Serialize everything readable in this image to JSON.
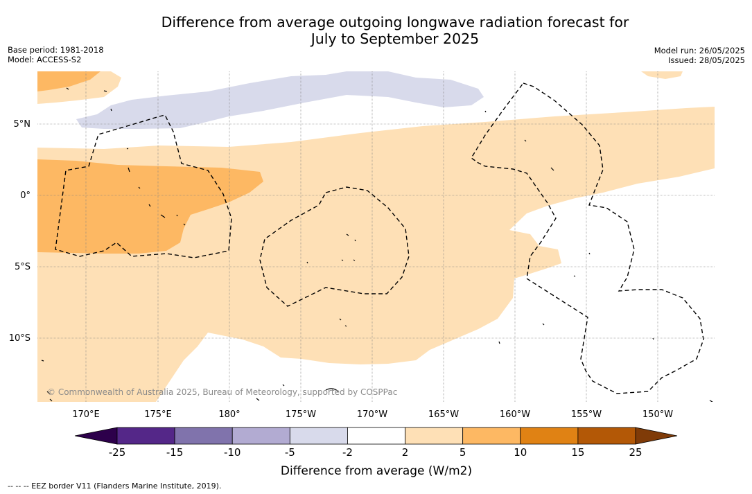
{
  "title_line1": "Difference from average outgoing longwave radiation forecast for",
  "title_line2": "July to September 2025",
  "base_period": "Base period: 1981-2018",
  "model": "Model: ACCESS-S2",
  "model_run": "Model run: 26/05/2025",
  "issued": "Issued: 28/05/2025",
  "map": {
    "longitude_labels": [
      "170°E",
      "175°E",
      "180°",
      "175°W",
      "170°W",
      "165°W",
      "160°W",
      "155°W",
      "150°W"
    ],
    "latitude_labels": [
      "5°N",
      "0°",
      "5°S",
      "10°S"
    ],
    "credit": "© Commonwealth of Australia 2025, Bureau of Meteorology, supported by COSPPac"
  },
  "colorbar": {
    "title": "Difference from average (W/m2)",
    "ticks": [
      "-25",
      "-15",
      "-10",
      "-5",
      "-2",
      "2",
      "5",
      "10",
      "15",
      "25"
    ],
    "colors": [
      "#2d004b",
      "#542788",
      "#8073ac",
      "#b2abd2",
      "#d8daeb",
      "#ffffff",
      "#fee0b6",
      "#fdb863",
      "#e08214",
      "#b35806",
      "#7f3b08"
    ]
  },
  "footnote": "--  --  -- EEZ border V11 (Flanders Marine Institute, 2019)."
}
